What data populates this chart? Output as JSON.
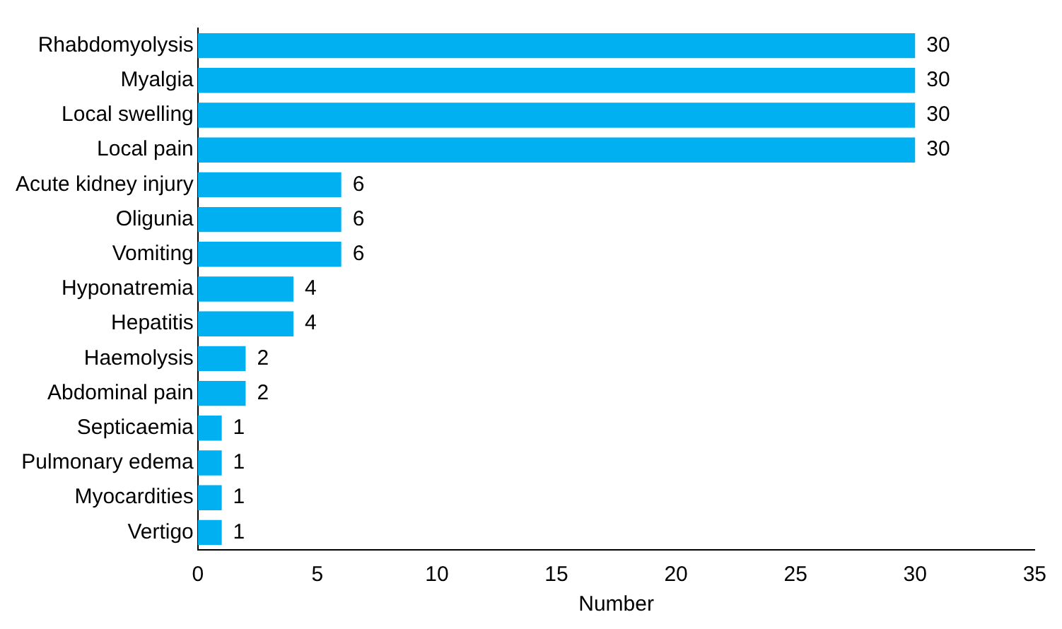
{
  "chart_data": {
    "type": "bar",
    "orientation": "horizontal",
    "xlabel": "Number",
    "categories": [
      "Rhabdomyolysis",
      "Myalgia",
      "Local swelling",
      "Local pain",
      "Acute kidney injury",
      "Oligunia",
      "Vomiting",
      "Hyponatremia",
      "Hepatitis",
      "Haemolysis",
      "Abdominal pain",
      "Septicaemia",
      "Pulmonary edema",
      "Myocardities",
      "Vertigo"
    ],
    "values": [
      30,
      30,
      30,
      30,
      6,
      6,
      6,
      4,
      4,
      2,
      2,
      1,
      1,
      1,
      1
    ],
    "color": "#00b0f0",
    "xlim": [
      0,
      35
    ],
    "xticks": [
      0,
      5,
      10,
      15,
      20,
      25,
      30,
      35
    ],
    "grid": false,
    "legend": false,
    "data_labels": true
  }
}
